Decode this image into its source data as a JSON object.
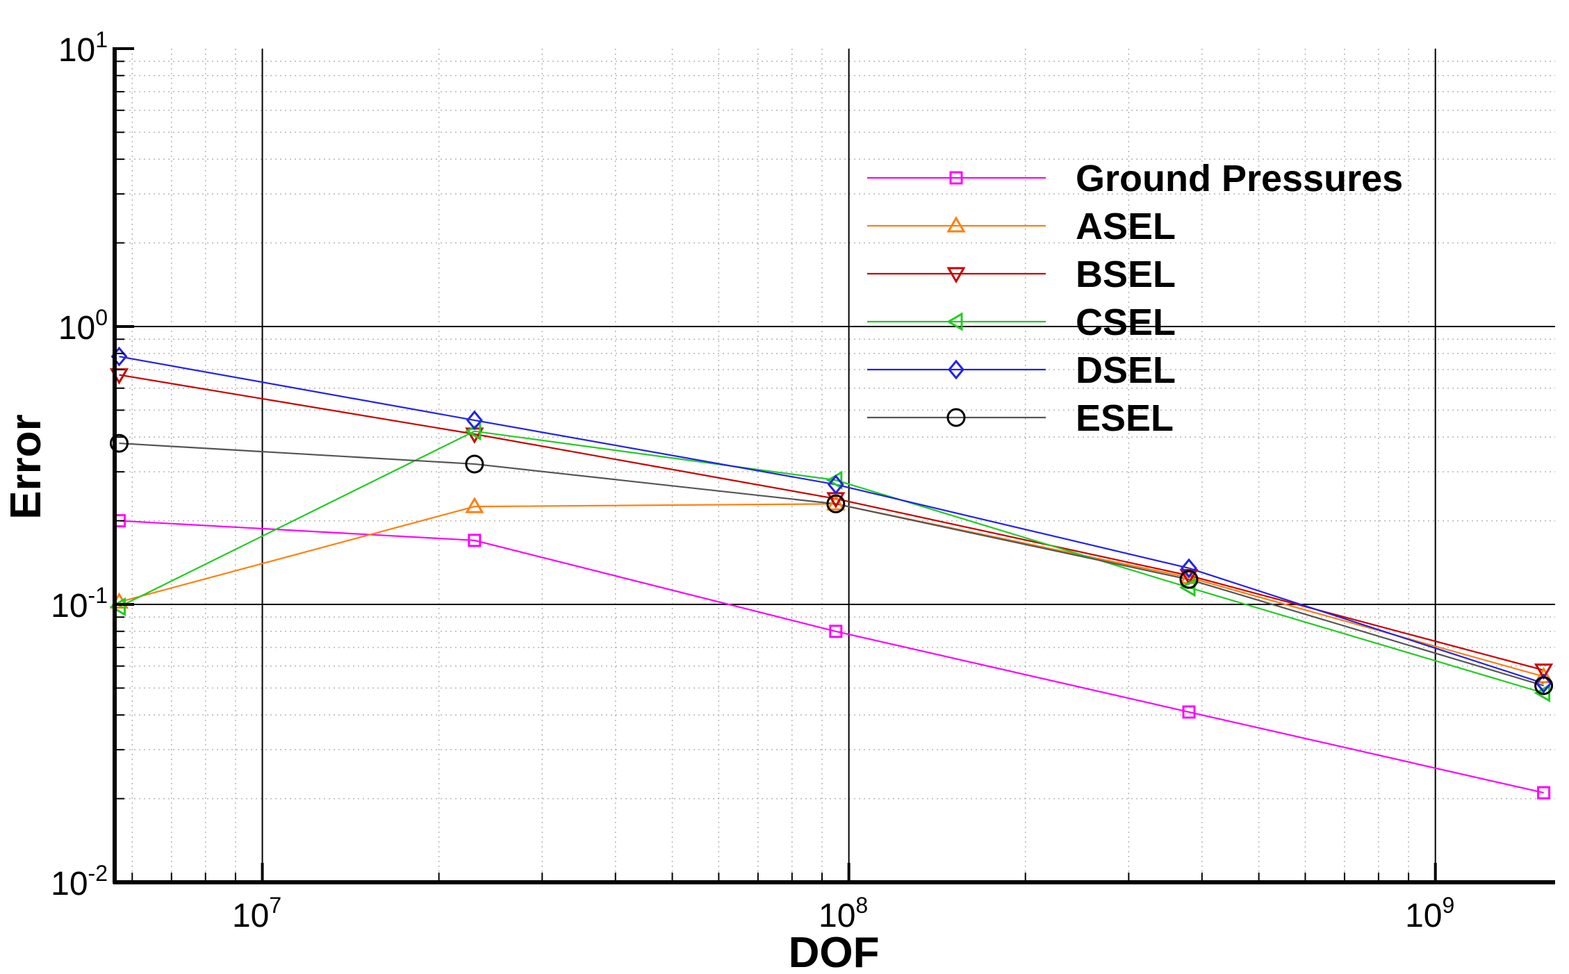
{
  "chart_data": {
    "type": "line",
    "title": "",
    "xlabel": "DOF",
    "ylabel": "Error",
    "xscale": "log",
    "yscale": "log",
    "xlim": [
      5600000,
      1600000000
    ],
    "ylim": [
      0.01,
      10
    ],
    "grid": true,
    "legend_position": "upper-right",
    "x_ticks": [
      {
        "value": 10000000,
        "base": "10",
        "exp": "7"
      },
      {
        "value": 100000000,
        "base": "10",
        "exp": "8"
      },
      {
        "value": 1000000000,
        "base": "10",
        "exp": "9"
      }
    ],
    "y_ticks": [
      {
        "value": 0.01,
        "base": "10",
        "exp": "-2"
      },
      {
        "value": 0.1,
        "base": "10",
        "exp": "-1"
      },
      {
        "value": 1,
        "base": "10",
        "exp": "0"
      },
      {
        "value": 10,
        "base": "10",
        "exp": "1"
      }
    ],
    "x": [
      5700000,
      23000000,
      95000000,
      380000000,
      1530000000
    ],
    "series": [
      {
        "name": "Ground Pressures",
        "color": "#ff00ff",
        "marker": "square",
        "values": [
          0.2,
          0.17,
          0.08,
          0.041,
          0.021
        ]
      },
      {
        "name": "ASEL",
        "color": "#ff7f0e",
        "marker": "triangle-up",
        "values": [
          0.102,
          0.225,
          0.23,
          0.125,
          0.055
        ]
      },
      {
        "name": "BSEL",
        "color": "#cc0000",
        "marker": "triangle-down",
        "values": [
          0.67,
          0.41,
          0.24,
          0.127,
          0.058
        ]
      },
      {
        "name": "CSEL",
        "color": "#22cc22",
        "marker": "triangle-left",
        "values": [
          0.098,
          0.42,
          0.28,
          0.115,
          0.048
        ]
      },
      {
        "name": "DSEL",
        "color": "#2222ee",
        "marker": "diamond",
        "values": [
          0.78,
          0.46,
          0.27,
          0.135,
          0.052
        ]
      },
      {
        "name": "ESEL",
        "color": "#000000",
        "line_color": "#555555",
        "marker": "circle",
        "values": [
          0.38,
          0.32,
          0.23,
          0.123,
          0.051
        ]
      }
    ]
  }
}
